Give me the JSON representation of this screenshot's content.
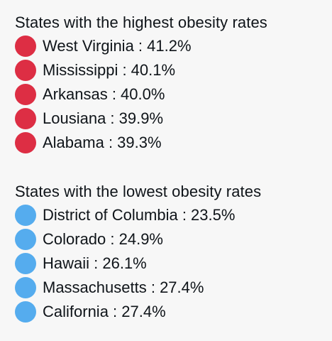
{
  "colors": {
    "background": "#f7f7f7",
    "text": "#0f1419",
    "red_circle": "#dd2e44",
    "blue_circle": "#55acee"
  },
  "highest": {
    "title": "States with the highest obesity rates",
    "icon": "red-circle-emoji",
    "items": [
      {
        "text": "West Virginia : 41.2%"
      },
      {
        "text": "Mississippi : 40.1%"
      },
      {
        "text": "Arkansas : 40.0%"
      },
      {
        "text": "Lousiana : 39.9%"
      },
      {
        "text": "Alabama : 39.3%"
      }
    ]
  },
  "lowest": {
    "title": "States with the lowest obesity rates",
    "icon": "blue-circle-emoji",
    "items": [
      {
        "text": "District of Columbia : 23.5%"
      },
      {
        "text": "Colorado : 24.9%"
      },
      {
        "text": "Hawaii : 26.1%"
      },
      {
        "text": "Massachusetts : 27.4%"
      },
      {
        "text": "California : 27.4%"
      }
    ]
  }
}
